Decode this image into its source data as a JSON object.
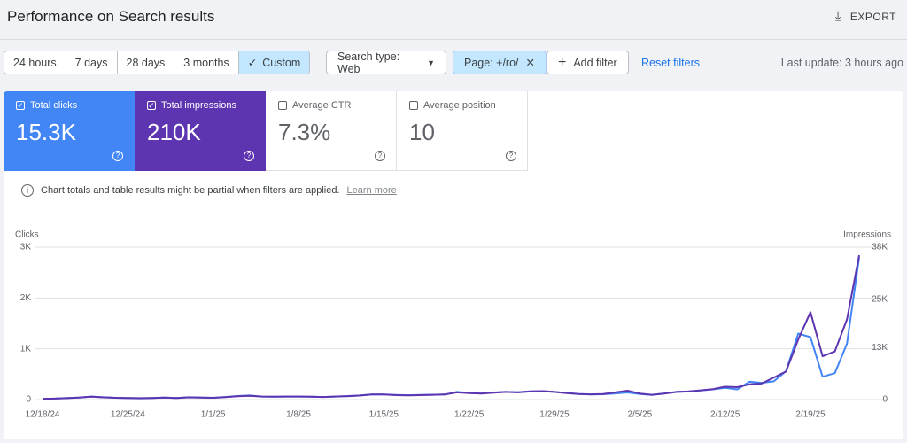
{
  "header": {
    "title": "Performance on Search results",
    "export": "EXPORT"
  },
  "toolbar": {
    "date_ranges": [
      "24 hours",
      "7 days",
      "28 days",
      "3 months",
      "Custom"
    ],
    "selected_index": 4,
    "filters": [
      "Search type: Web",
      "Page: +/ro/"
    ],
    "add_filter": "Add filter",
    "reset": "Reset filters",
    "last_update": "Last update: 3 hours ago"
  },
  "metrics": [
    {
      "label": "Total clicks",
      "value": "15.3K",
      "checked": true,
      "color": "#4285f4"
    },
    {
      "label": "Total impressions",
      "value": "210K",
      "checked": true,
      "color": "#5e35b1"
    },
    {
      "label": "Average CTR",
      "value": "7.3%",
      "checked": false,
      "color": "#00897b"
    },
    {
      "label": "Average position",
      "value": "10",
      "checked": false,
      "color": "#e8710a"
    }
  ],
  "notice": {
    "text": "Chart totals and table results might be partial when filters are applied.",
    "link": "Learn more"
  },
  "chart_data": {
    "type": "line",
    "y_label": "Clicks",
    "y2_label": "Impressions",
    "categories": [
      "12/18/24",
      null,
      null,
      null,
      null,
      null,
      null,
      "12/25/24",
      null,
      null,
      null,
      null,
      null,
      null,
      "1/1/25",
      null,
      null,
      null,
      null,
      null,
      null,
      "1/8/25",
      null,
      null,
      null,
      null,
      null,
      null,
      "1/15/25",
      null,
      null,
      null,
      null,
      null,
      null,
      "1/22/25",
      null,
      null,
      null,
      null,
      null,
      null,
      "1/29/25",
      null,
      null,
      null,
      null,
      null,
      null,
      "2/5/25",
      null,
      null,
      null,
      null,
      null,
      null,
      "2/12/25",
      null,
      null,
      null,
      null,
      null,
      null,
      "2/19/25",
      null,
      null,
      null,
      null
    ],
    "series": [
      {
        "name": "Clicks",
        "color": "#4285f4",
        "values": [
          15,
          20,
          30,
          40,
          60,
          45,
          35,
          30,
          25,
          30,
          40,
          30,
          45,
          40,
          35,
          50,
          70,
          80,
          60,
          55,
          60,
          60,
          55,
          50,
          60,
          70,
          80,
          100,
          100,
          90,
          85,
          90,
          95,
          100,
          150,
          130,
          120,
          140,
          150,
          145,
          160,
          165,
          150,
          130,
          110,
          100,
          105,
          120,
          140,
          110,
          90,
          120,
          150,
          160,
          180,
          200,
          230,
          200,
          350,
          330,
          360,
          560,
          1300,
          1230,
          450,
          520,
          1100,
          2800
        ]
      },
      {
        "name": "Impressions",
        "color": "#5e35b1",
        "axis": "y2",
        "values": [
          200,
          250,
          350,
          500,
          700,
          550,
          450,
          400,
          350,
          400,
          500,
          400,
          550,
          500,
          450,
          600,
          850,
          950,
          750,
          700,
          750,
          750,
          700,
          650,
          750,
          850,
          1000,
          1250,
          1250,
          1100,
          1050,
          1100,
          1200,
          1250,
          1800,
          1600,
          1500,
          1700,
          1900,
          1800,
          2000,
          2100,
          1900,
          1600,
          1400,
          1300,
          1400,
          1800,
          2200,
          1500,
          1200,
          1500,
          1900,
          2000,
          2300,
          2600,
          3200,
          3100,
          3800,
          4000,
          5500,
          7000,
          15000,
          21800,
          10800,
          12000,
          20000,
          36000
        ]
      }
    ],
    "ylim": [
      0,
      3000
    ],
    "yticks": [
      0,
      {
        "value": 1000,
        "label": "1K"
      },
      {
        "value": 2000,
        "label": "2K"
      },
      {
        "value": 3000,
        "label": "3K"
      }
    ],
    "y2lim": [
      0,
      38000
    ],
    "y2ticks": [
      0,
      {
        "value": 13000,
        "label": "13K"
      },
      {
        "value": 25000,
        "label": "25K"
      },
      {
        "value": 38000,
        "label": "38K"
      }
    ],
    "grid": true
  }
}
